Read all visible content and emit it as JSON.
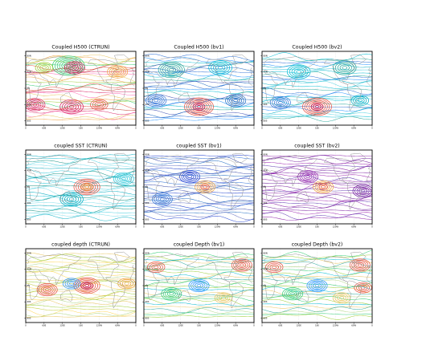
{
  "chart_data": [
    {
      "type": "contour-map",
      "title": "Coupled H500 (CTRUN)",
      "xticks": [
        "0",
        "60E",
        "120E",
        "180",
        "120W",
        "60W",
        "0"
      ],
      "yticks": [
        "80N",
        "40N",
        "EQ",
        "40S",
        "80S"
      ],
      "palette": [
        "#e8c35a",
        "#f0a03c",
        "#9acd32",
        "#2ecc71",
        "#e74c3c",
        "#c0392b",
        "#d81b60",
        "#ff69b4"
      ],
      "features": [
        {
          "lon": 140,
          "lat": 55,
          "radius": 22,
          "color": "#2ecc71"
        },
        {
          "lon": 160,
          "lat": 50,
          "radius": 14,
          "color": "#d81b60"
        },
        {
          "lon": 60,
          "lat": 50,
          "radius": 12,
          "color": "#9acd32"
        },
        {
          "lon": 30,
          "lat": -40,
          "radius": 14,
          "color": "#d81b60"
        },
        {
          "lon": 150,
          "lat": -45,
          "radius": 16,
          "color": "#d81b60"
        },
        {
          "lon": 240,
          "lat": -40,
          "radius": 12,
          "color": "#e74c3c"
        },
        {
          "lon": 300,
          "lat": 40,
          "radius": 14,
          "color": "#f0a03c"
        }
      ]
    },
    {
      "type": "contour-map",
      "title": "Coupled H500 (bv1)",
      "xticks": [
        "0",
        "60E",
        "120E",
        "180",
        "120W",
        "60W",
        "0"
      ],
      "yticks": [
        "80N",
        "40N",
        "EQ",
        "40S",
        "80S"
      ],
      "palette": [
        "#2b6fd6",
        "#1e90ff",
        "#00bcd4",
        "#26a69a",
        "#3f51b5",
        "#1565c0"
      ],
      "features": [
        {
          "lon": 180,
          "lat": -45,
          "radius": 20,
          "color": "#e74c3c"
        },
        {
          "lon": 180,
          "lat": -45,
          "radius": 8,
          "color": "#c2185b"
        },
        {
          "lon": 90,
          "lat": 45,
          "radius": 18,
          "color": "#26a69a"
        },
        {
          "lon": 250,
          "lat": 50,
          "radius": 16,
          "color": "#00bcd4"
        },
        {
          "lon": 40,
          "lat": -30,
          "radius": 14,
          "color": "#2b6fd6"
        },
        {
          "lon": 300,
          "lat": -30,
          "radius": 14,
          "color": "#1565c0"
        }
      ]
    },
    {
      "type": "contour-map",
      "title": "Coupled H500 (bv2)",
      "xticks": [
        "0",
        "60E",
        "120E",
        "180",
        "120W",
        "60W",
        "0"
      ],
      "yticks": [
        "80N",
        "40N",
        "EQ",
        "40S",
        "80S"
      ],
      "palette": [
        "#00bcd4",
        "#26a69a",
        "#2b6fd6",
        "#1e90ff",
        "#00acc1",
        "#4dd0e1"
      ],
      "features": [
        {
          "lon": 180,
          "lat": -45,
          "radius": 20,
          "color": "#e74c3c"
        },
        {
          "lon": 180,
          "lat": -45,
          "radius": 8,
          "color": "#c2185b"
        },
        {
          "lon": 120,
          "lat": 40,
          "radius": 16,
          "color": "#00bcd4"
        },
        {
          "lon": 270,
          "lat": 50,
          "radius": 16,
          "color": "#26a69a"
        },
        {
          "lon": 60,
          "lat": -35,
          "radius": 14,
          "color": "#2b6fd6"
        },
        {
          "lon": 320,
          "lat": -30,
          "radius": 12,
          "color": "#00acc1"
        }
      ]
    },
    {
      "type": "contour-map",
      "title": "coupled SST (CTRUN)",
      "xticks": [
        "0",
        "60E",
        "120E",
        "180",
        "120W",
        "60W",
        "0"
      ],
      "yticks": [
        "80N",
        "40N",
        "EQ",
        "40S",
        "80S"
      ],
      "palette": [
        "#00acc1",
        "#26c6da",
        "#00897b",
        "#4dd0e1",
        "#80deea"
      ],
      "features": [
        {
          "lon": 200,
          "lat": 0,
          "radius": 18,
          "color": "#e74c3c"
        },
        {
          "lon": 200,
          "lat": 0,
          "radius": 8,
          "color": "#f0a03c"
        },
        {
          "lon": 150,
          "lat": -30,
          "radius": 16,
          "color": "#00acc1"
        },
        {
          "lon": 320,
          "lat": 20,
          "radius": 14,
          "color": "#26c6da"
        }
      ]
    },
    {
      "type": "contour-map",
      "title": "coupled SST (bv1)",
      "xticks": [
        "0",
        "60E",
        "120E",
        "180",
        "120W",
        "60W",
        "0"
      ],
      "yticks": [
        "80N",
        "40N",
        "EQ",
        "40S",
        "80S"
      ],
      "palette": [
        "#1e3fd1",
        "#2b6fd6",
        "#3949ab",
        "#1565c0",
        "#5c6bc0"
      ],
      "features": [
        {
          "lon": 200,
          "lat": 0,
          "radius": 14,
          "color": "#f0a03c"
        },
        {
          "lon": 200,
          "lat": 0,
          "radius": 6,
          "color": "#e74c3c"
        },
        {
          "lon": 150,
          "lat": 25,
          "radius": 14,
          "color": "#1e3fd1"
        },
        {
          "lon": 60,
          "lat": -30,
          "radius": 14,
          "color": "#2b6fd6"
        }
      ]
    },
    {
      "type": "contour-map",
      "title": "coupled SST (bv2)",
      "xticks": [
        "0",
        "60E",
        "120E",
        "180",
        "120W",
        "60W",
        "0"
      ],
      "yticks": [
        "80N",
        "40N",
        "EQ",
        "40S",
        "80S"
      ],
      "palette": [
        "#8e24aa",
        "#6a1b9a",
        "#7b1fa2",
        "#9c27b0",
        "#5e35b1"
      ],
      "features": [
        {
          "lon": 200,
          "lat": 0,
          "radius": 14,
          "color": "#f0a03c"
        },
        {
          "lon": 200,
          "lat": 0,
          "radius": 6,
          "color": "#e74c3c"
        },
        {
          "lon": 150,
          "lat": 25,
          "radius": 14,
          "color": "#8e24aa"
        },
        {
          "lon": 330,
          "lat": -10,
          "radius": 14,
          "color": "#6a1b9a"
        }
      ]
    },
    {
      "type": "contour-map",
      "title": "coupled depth (CTRUN)",
      "xticks": [
        "0",
        "60E",
        "120E",
        "180",
        "120W",
        "60W",
        "0"
      ],
      "yticks": [
        "80N",
        "40N",
        "EQ",
        "40S",
        "80S"
      ],
      "palette": [
        "#e8c35a",
        "#9acd32",
        "#c0ca33",
        "#ffd54f",
        "#aed581"
      ],
      "features": [
        {
          "lon": 200,
          "lat": 0,
          "radius": 18,
          "color": "#e74c3c"
        },
        {
          "lon": 200,
          "lat": 0,
          "radius": 8,
          "color": "#c2185b"
        },
        {
          "lon": 150,
          "lat": 5,
          "radius": 12,
          "color": "#1e90ff"
        },
        {
          "lon": 70,
          "lat": -10,
          "radius": 14,
          "color": "#e74c3c"
        },
        {
          "lon": 330,
          "lat": 5,
          "radius": 12,
          "color": "#f0a03c"
        }
      ]
    },
    {
      "type": "contour-map",
      "title": "coupled Depth (bv1)",
      "xticks": [
        "0",
        "60E",
        "120E",
        "180",
        "120W",
        "60W",
        "0"
      ],
      "yticks": [
        "80N",
        "40N",
        "EQ",
        "40S",
        "80S"
      ],
      "palette": [
        "#2ecc71",
        "#9acd32",
        "#00bcd4",
        "#e8c35a",
        "#26a69a",
        "#aed581"
      ],
      "features": [
        {
          "lon": 40,
          "lat": 45,
          "radius": 12,
          "color": "#e74c3c"
        },
        {
          "lon": 320,
          "lat": 50,
          "radius": 14,
          "color": "#e74c3c"
        },
        {
          "lon": 180,
          "lat": 0,
          "radius": 14,
          "color": "#1e90ff"
        },
        {
          "lon": 90,
          "lat": -20,
          "radius": 14,
          "color": "#2ecc71"
        },
        {
          "lon": 260,
          "lat": -30,
          "radius": 12,
          "color": "#e8c35a"
        }
      ]
    },
    {
      "type": "contour-map",
      "title": "coupled Depth (bv2)",
      "xticks": [
        "0",
        "60E",
        "120E",
        "180",
        "120W",
        "60W",
        "0"
      ],
      "yticks": [
        "80N",
        "40N",
        "EQ",
        "40S",
        "80S"
      ],
      "palette": [
        "#2ecc71",
        "#9acd32",
        "#00bcd4",
        "#e8c35a",
        "#26a69a",
        "#aed581"
      ],
      "features": [
        {
          "lon": 40,
          "lat": 45,
          "radius": 12,
          "color": "#e74c3c"
        },
        {
          "lon": 320,
          "lat": 50,
          "radius": 14,
          "color": "#e74c3c"
        },
        {
          "lon": 330,
          "lat": -5,
          "radius": 12,
          "color": "#e74c3c"
        },
        {
          "lon": 180,
          "lat": 0,
          "radius": 14,
          "color": "#1e90ff"
        },
        {
          "lon": 100,
          "lat": -20,
          "radius": 14,
          "color": "#2ecc71"
        },
        {
          "lon": 260,
          "lat": -30,
          "radius": 12,
          "color": "#e8c35a"
        }
      ]
    }
  ]
}
